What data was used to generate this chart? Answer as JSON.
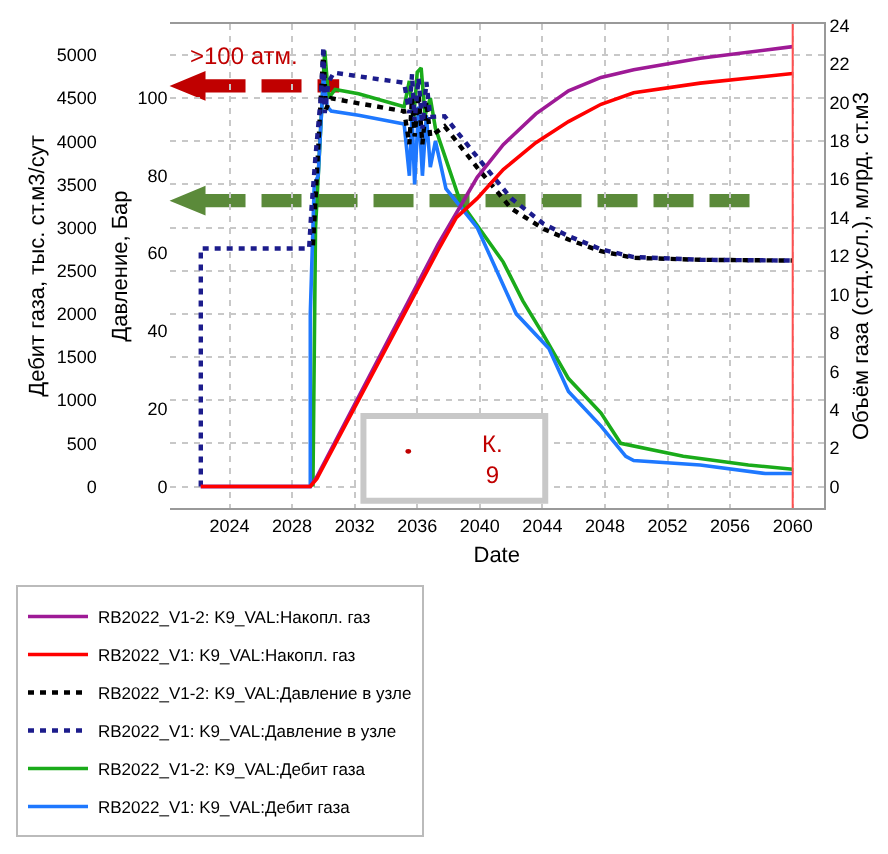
{
  "chart_data": {
    "type": "line",
    "xlabel": "Date",
    "ylabel": "Дебит газа, тыс. ст.м3/сут",
    "y2label": "Давление, Бар",
    "y3label": "Объём газа (стд.усл.), млрд. ст.м3",
    "xlim": [
      "2020-03",
      "2062-01"
    ],
    "xticks": [
      {
        "value": "2024-01",
        "label": "2024"
      },
      {
        "value": "2028-01",
        "label": "2028"
      },
      {
        "value": "2032-01",
        "label": "2032"
      },
      {
        "value": "2036-01",
        "label": "2036"
      },
      {
        "value": "2040-01",
        "label": "2040"
      },
      {
        "value": "2044-01",
        "label": "2044"
      },
      {
        "value": "2048-01",
        "label": "2048"
      },
      {
        "value": "2052-01",
        "label": "2052"
      },
      {
        "value": "2056-01",
        "label": "2056"
      },
      {
        "value": "2060-01",
        "label": "2060"
      }
    ],
    "ylim": [
      -249,
      5358
    ],
    "yticks": [
      0,
      500,
      1000,
      1500,
      2000,
      2500,
      3000,
      3500,
      4000,
      4500,
      5000
    ],
    "y2lim": [
      -5.5,
      118.9
    ],
    "y2ticks": [
      0,
      20,
      40,
      60,
      80,
      100
    ],
    "y3lim": [
      -1.12,
      24.08
    ],
    "y3ticks": [
      0,
      2,
      4,
      6,
      8,
      10,
      12,
      14,
      16,
      18,
      20,
      22,
      24
    ],
    "grid": true,
    "legend": "bottom",
    "marker": "none",
    "ref_lines": [
      {
        "axis": "x",
        "value": "2060-01",
        "color": "#ff5050"
      }
    ],
    "annotations": [
      ">100 атм.",
      "К. 9"
    ],
    "series": [
      {
        "name": "RB2022_V1-2: K9_VAL:Накопл. газ",
        "color": "#9e1a96",
        "axis": "y3",
        "line_style": "solid",
        "x": [
          "2022-03",
          "2029-03",
          "2029-08",
          "2037-05",
          "2039-11",
          "2041-07",
          "2043-08",
          "2045-09",
          "2047-10",
          "2049-11",
          "2054-02",
          "2060-01"
        ],
        "values": [
          0,
          0,
          0.5,
          12.6,
          16.1,
          17.8,
          19.4,
          20.6,
          21.3,
          21.7,
          22.3,
          22.9
        ]
      },
      {
        "name": "RB2022_V1: K9_VAL:Накопл. газ",
        "color": "#ff0000",
        "axis": "y3",
        "line_style": "solid",
        "x": [
          "2022-03",
          "2029-03",
          "2029-08",
          "2037-05",
          "2038-07",
          "2039-11",
          "2041-07",
          "2043-08",
          "2045-09",
          "2047-10",
          "2049-11",
          "2054-02",
          "2060-01"
        ],
        "values": [
          0,
          0,
          0.4,
          12.3,
          14.0,
          15.0,
          16.5,
          17.9,
          19.0,
          19.9,
          20.5,
          21.0,
          21.5
        ]
      },
      {
        "name": "RB2022_V1-2: K9_VAL:Давление в узле",
        "color": "#000000",
        "axis": "y2",
        "line_style": "dotted",
        "x": [
          "2029-05",
          "2029-08",
          "2029-11",
          "2030-01",
          "2030-03",
          "2030-07",
          "2032-04",
          "2035-03",
          "2035-07",
          "2035-09",
          "2035-11",
          "2036-02",
          "2036-05",
          "2036-08",
          "2036-11",
          "2037-10",
          "2039-11",
          "2042-01",
          "2044-02",
          "2045-09",
          "2047-10",
          "2049-11",
          "2054-02",
          "2060-01"
        ],
        "values": [
          62,
          80,
          100,
          112,
          97,
          99.8,
          98.5,
          96.5,
          88,
          100,
          90,
          101,
          88,
          99,
          90,
          92.6,
          82.0,
          71.5,
          66.2,
          63.5,
          60.5,
          58.8,
          58.3,
          58.1
        ]
      },
      {
        "name": "RB2022_V1: K9_VAL:Давление в узле",
        "color": "#1c1c8c",
        "axis": "y2",
        "line_style": "dotted",
        "x": [
          "2022-03",
          "2022-03",
          "2029-02",
          "2029-04",
          "2029-07",
          "2029-11",
          "2030-01",
          "2030-02",
          "2030-05",
          "2030-09",
          "2033-01",
          "2035-03",
          "2035-07",
          "2035-09",
          "2035-11",
          "2036-02",
          "2036-05",
          "2036-08",
          "2036-11",
          "2037-10",
          "2039-11",
          "2042-01",
          "2044-02",
          "2045-09",
          "2047-10",
          "2049-11",
          "2054-02",
          "2060-01"
        ],
        "values": [
          0,
          61.2,
          61.2,
          72,
          85,
          100,
          113,
          96,
          104,
          106.4,
          105,
          103.8,
          96,
          106,
          94,
          105,
          92,
          104,
          95,
          95.2,
          84.7,
          74.1,
          67.5,
          64.4,
          61.0,
          59.0,
          58.3,
          58.1
        ]
      },
      {
        "name": "RB2022_V1-2: K9_VAL:Дебит газа",
        "color": "#1aab1a",
        "axis": "y",
        "line_style": "solid",
        "x": [
          "2029-05",
          "2029-07",
          "2030-02",
          "2030-05",
          "2030-10",
          "2032-04",
          "2035-03",
          "2035-07",
          "2035-10",
          "2036-01",
          "2036-04",
          "2036-07",
          "2036-11",
          "2037-03",
          "2038-10",
          "2041-07",
          "2042-10",
          "2044-02",
          "2045-09",
          "2047-10",
          "2049-01",
          "2053-01",
          "2057-03",
          "2060-01"
        ],
        "values": [
          0,
          3000,
          5050,
          4500,
          4600,
          4550,
          4400,
          4700,
          4200,
          4800,
          4850,
          4300,
          4500,
          4150,
          3300,
          2600,
          2150,
          1750,
          1250,
          850,
          500,
          350,
          250,
          200
        ]
      },
      {
        "name": "RB2022_V1: K9_VAL:Дебит газа",
        "color": "#1e78ff",
        "axis": "y",
        "line_style": "solid",
        "x": [
          "2022-03",
          "2029-03",
          "2029-03",
          "2029-06",
          "2029-09",
          "2030-01",
          "2030-04",
          "2030-07",
          "2032-04",
          "2035-03",
          "2035-07",
          "2035-09",
          "2035-11",
          "2036-02",
          "2036-05",
          "2036-08",
          "2036-11",
          "2037-03",
          "2037-11",
          "2039-11",
          "2042-05",
          "2044-06",
          "2045-09",
          "2047-10",
          "2049-05",
          "2049-11",
          "2054-02",
          "2058-04",
          "2060-01"
        ],
        "values": [
          0,
          0,
          2000,
          3500,
          3600,
          4750,
          4400,
          4350,
          4300,
          4200,
          3600,
          4300,
          3500,
          4400,
          3600,
          4300,
          3700,
          4000,
          3450,
          3000,
          2000,
          1600,
          1100,
          700,
          350,
          300,
          250,
          150,
          150
        ]
      }
    ]
  }
}
